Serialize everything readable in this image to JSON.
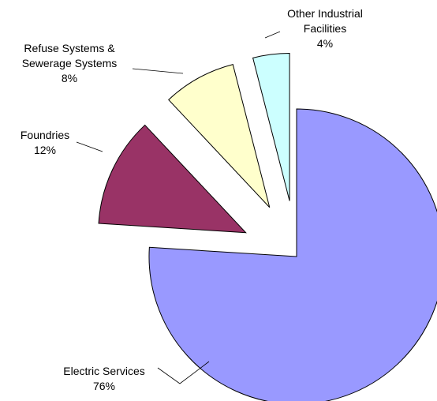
{
  "chart_data": {
    "type": "pie",
    "title": "",
    "legend": "none",
    "slices": [
      {
        "name": "Electric Services",
        "label": "Electric Services",
        "percent_label": "76%",
        "value": 76,
        "color": "#9999FF"
      },
      {
        "name": "Foundries",
        "label": "Foundries",
        "percent_label": "12%",
        "value": 12,
        "color": "#993366"
      },
      {
        "name": "Refuse Systems & Sewerage Systems",
        "label": "Refuse Systems & Sewerage Systems",
        "percent_label": "8%",
        "value": 8,
        "color": "#FFFFCC"
      },
      {
        "name": "Other Industrial Facilities",
        "label": "Other Industrial Facilities",
        "percent_label": "4%",
        "value": 4,
        "color": "#CCFFFF"
      }
    ]
  }
}
